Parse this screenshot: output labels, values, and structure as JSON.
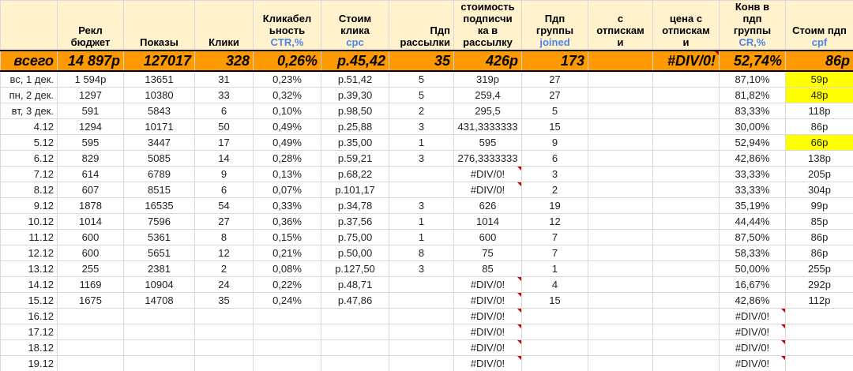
{
  "headers": [
    {
      "lines": [
        ""
      ],
      "sub": ""
    },
    {
      "lines": [
        "Рекл",
        "бюджет"
      ],
      "sub": ""
    },
    {
      "lines": [
        "Показы"
      ],
      "sub": ""
    },
    {
      "lines": [
        "Клики"
      ],
      "sub": ""
    },
    {
      "lines": [
        "Кликабел",
        "ьность"
      ],
      "sub": "CTR,%"
    },
    {
      "lines": [
        "Стоим",
        "клика"
      ],
      "sub": "cpc"
    },
    {
      "lines": [
        "Пдп",
        "рассылки"
      ],
      "sub": ""
    },
    {
      "lines": [
        "стоимость",
        "подписчи",
        "ка в",
        "рассылку"
      ],
      "sub": ""
    },
    {
      "lines": [
        "Пдп",
        "группы"
      ],
      "sub": "joined"
    },
    {
      "lines": [
        "с",
        "отпискам",
        "и"
      ],
      "sub": ""
    },
    {
      "lines": [
        "цена с",
        "отпискам",
        "и"
      ],
      "sub": ""
    },
    {
      "lines": [
        "Конв в",
        "пдп",
        "группы"
      ],
      "sub": "CR,%"
    },
    {
      "lines": [
        "Стоим пдп"
      ],
      "sub": "cpf"
    }
  ],
  "totals": [
    "всего",
    "14 897р",
    "127017",
    "328",
    "0,26%",
    "р.45,42",
    "35",
    "426р",
    "173",
    "",
    "#DIV/0!",
    "52,74%",
    "86р"
  ],
  "rows": [
    [
      "вс, 1 дек.",
      "1 594р",
      "13651",
      "31",
      "0,23%",
      "р.51,42",
      "5",
      "319р",
      "27",
      "",
      "",
      "87,10%",
      "59р"
    ],
    [
      "пн, 2 дек.",
      "1297",
      "10380",
      "33",
      "0,32%",
      "р.39,30",
      "5",
      "259,4",
      "27",
      "",
      "",
      "81,82%",
      "48р"
    ],
    [
      "вт, 3 дек.",
      "591",
      "5843",
      "6",
      "0,10%",
      "р.98,50",
      "2",
      "295,5",
      "5",
      "",
      "",
      "83,33%",
      "118р"
    ],
    [
      "4.12",
      "1294",
      "10171",
      "50",
      "0,49%",
      "р.25,88",
      "3",
      "431,3333333",
      "15",
      "",
      "",
      "30,00%",
      "86р"
    ],
    [
      "5.12",
      "595",
      "3447",
      "17",
      "0,49%",
      "р.35,00",
      "1",
      "595",
      "9",
      "",
      "",
      "52,94%",
      "66р"
    ],
    [
      "6.12",
      "829",
      "5085",
      "14",
      "0,28%",
      "р.59,21",
      "3",
      "276,3333333",
      "6",
      "",
      "",
      "42,86%",
      "138р"
    ],
    [
      "7.12",
      "614",
      "6789",
      "9",
      "0,13%",
      "р.68,22",
      "",
      "#DIV/0!",
      "3",
      "",
      "",
      "33,33%",
      "205р"
    ],
    [
      "8.12",
      "607",
      "8515",
      "6",
      "0,07%",
      "р.101,17",
      "",
      "#DIV/0!",
      "2",
      "",
      "",
      "33,33%",
      "304р"
    ],
    [
      "9.12",
      "1878",
      "16535",
      "54",
      "0,33%",
      "р.34,78",
      "3",
      "626",
      "19",
      "",
      "",
      "35,19%",
      "99р"
    ],
    [
      "10.12",
      "1014",
      "7596",
      "27",
      "0,36%",
      "р.37,56",
      "1",
      "1014",
      "12",
      "",
      "",
      "44,44%",
      "85р"
    ],
    [
      "11.12",
      "600",
      "5361",
      "8",
      "0,15%",
      "р.75,00",
      "1",
      "600",
      "7",
      "",
      "",
      "87,50%",
      "86р"
    ],
    [
      "12.12",
      "600",
      "5651",
      "12",
      "0,21%",
      "р.50,00",
      "8",
      "75",
      "7",
      "",
      "",
      "58,33%",
      "86р"
    ],
    [
      "13.12",
      "255",
      "2381",
      "2",
      "0,08%",
      "р.127,50",
      "3",
      "85",
      "1",
      "",
      "",
      "50,00%",
      "255р"
    ],
    [
      "14.12",
      "1169",
      "10904",
      "24",
      "0,22%",
      "р.48,71",
      "",
      "#DIV/0!",
      "4",
      "",
      "",
      "16,67%",
      "292р"
    ],
    [
      "15.12",
      "1675",
      "14708",
      "35",
      "0,24%",
      "р.47,86",
      "",
      "#DIV/0!",
      "15",
      "",
      "",
      "42,86%",
      "112р"
    ],
    [
      "16.12",
      "",
      "",
      "",
      "",
      "",
      "",
      "#DIV/0!",
      "",
      "",
      "",
      "#DIV/0!",
      ""
    ],
    [
      "17.12",
      "",
      "",
      "",
      "",
      "",
      "",
      "#DIV/0!",
      "",
      "",
      "",
      "#DIV/0!",
      ""
    ],
    [
      "18.12",
      "",
      "",
      "",
      "",
      "",
      "",
      "#DIV/0!",
      "",
      "",
      "",
      "#DIV/0!",
      ""
    ],
    [
      "19.12",
      "",
      "",
      "",
      "",
      "",
      "",
      "#DIV/0!",
      "",
      "",
      "",
      "#DIV/0!",
      ""
    ]
  ],
  "highlight_color": "#ffff00",
  "total_row_color": "#ff9900",
  "header_color": "#fff2cc"
}
